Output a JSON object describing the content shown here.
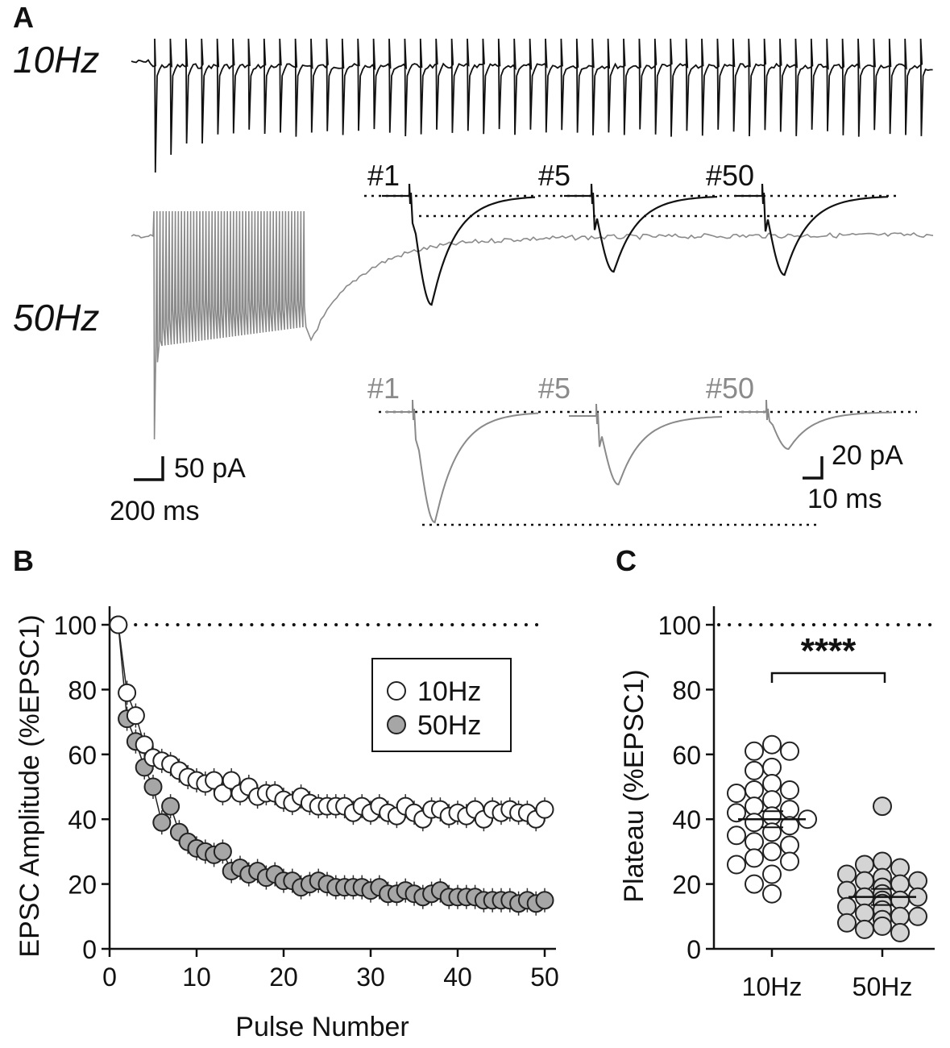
{
  "colors": {
    "trace_10hz": "#111111",
    "trace_50hz": "#8a8a8a",
    "marker_10hz_fill": "#ffffff",
    "marker_50hz_fill_b": "#a6a6a6",
    "marker_50hz_fill_c": "#d4d4d4",
    "marker_edge": "#222222"
  },
  "panel_a": {
    "label": "A",
    "freq_10": "10Hz",
    "freq_50": "50Hz",
    "pulse_labels": [
      "#1",
      "#5",
      "#50"
    ],
    "scale_main": {
      "amplitude": "50 pA",
      "time": "200 ms"
    },
    "scale_inset": {
      "amplitude": "20 pA",
      "time": "10 ms"
    }
  },
  "panel_b_label": "B",
  "panel_c_label": "C",
  "chart_data": [
    {
      "type": "scatter",
      "panel": "B",
      "xlabel": "Pulse Number",
      "ylabel": "EPSC Amplitude (%EPSC1)",
      "xlim": [
        0,
        50
      ],
      "ylim": [
        0,
        100
      ],
      "xticks": [
        0,
        10,
        20,
        30,
        40,
        50
      ],
      "yticks": [
        0,
        20,
        40,
        60,
        80,
        100
      ],
      "reference_line": 100,
      "legend": {
        "placement": "top-right",
        "entries": [
          "10Hz",
          "50Hz"
        ]
      },
      "x": [
        1,
        2,
        3,
        4,
        5,
        6,
        7,
        8,
        9,
        10,
        11,
        12,
        13,
        14,
        15,
        16,
        17,
        18,
        19,
        20,
        21,
        22,
        23,
        24,
        25,
        26,
        27,
        28,
        29,
        30,
        31,
        32,
        33,
        34,
        35,
        36,
        37,
        38,
        39,
        40,
        41,
        42,
        43,
        44,
        45,
        46,
        47,
        48,
        49,
        50
      ],
      "series": [
        {
          "name": "10Hz",
          "values": [
            100,
            79,
            72,
            63,
            59,
            58,
            57,
            55,
            53,
            52,
            51,
            52,
            48,
            52,
            48,
            50,
            47,
            48,
            48,
            46,
            45,
            47,
            45,
            44,
            44,
            44,
            44,
            42,
            44,
            42,
            44,
            42,
            41,
            44,
            42,
            40,
            43,
            43,
            41,
            42,
            41,
            43,
            40,
            43,
            42,
            43,
            42,
            42,
            40,
            43
          ]
        },
        {
          "name": "50Hz",
          "values": [
            100,
            71,
            64,
            56,
            50,
            39,
            44,
            36,
            33,
            31,
            30,
            29,
            30,
            24,
            25,
            23,
            24,
            22,
            23,
            21,
            21,
            19,
            20,
            21,
            20,
            19,
            19,
            19,
            19,
            18,
            19,
            17,
            17,
            18,
            17,
            16,
            17,
            18,
            16,
            16,
            16,
            16,
            15,
            15,
            15,
            15,
            14,
            15,
            14,
            15
          ]
        }
      ]
    },
    {
      "type": "scatter",
      "panel": "C",
      "ylabel": "Plateau (%EPSC1)",
      "categories": [
        "10Hz",
        "50Hz"
      ],
      "ylim": [
        0,
        100
      ],
      "yticks": [
        0,
        20,
        40,
        60,
        80,
        100
      ],
      "reference_line": 100,
      "significance": "****",
      "series": [
        {
          "name": "10Hz",
          "mean": 40,
          "values": [
            63,
            61,
            61,
            56,
            55,
            51,
            49,
            49,
            48,
            46,
            44,
            43,
            42,
            41,
            40,
            39,
            38,
            36,
            35,
            33,
            32,
            30,
            28,
            27,
            26,
            23,
            20,
            17
          ]
        },
        {
          "name": "50Hz",
          "mean": 16,
          "values": [
            44,
            27,
            26,
            25,
            23,
            22,
            21,
            21,
            20,
            19,
            18,
            17,
            16,
            16,
            15,
            15,
            14,
            13,
            12,
            11,
            10,
            10,
            9,
            8,
            7,
            6,
            5
          ]
        }
      ]
    }
  ]
}
